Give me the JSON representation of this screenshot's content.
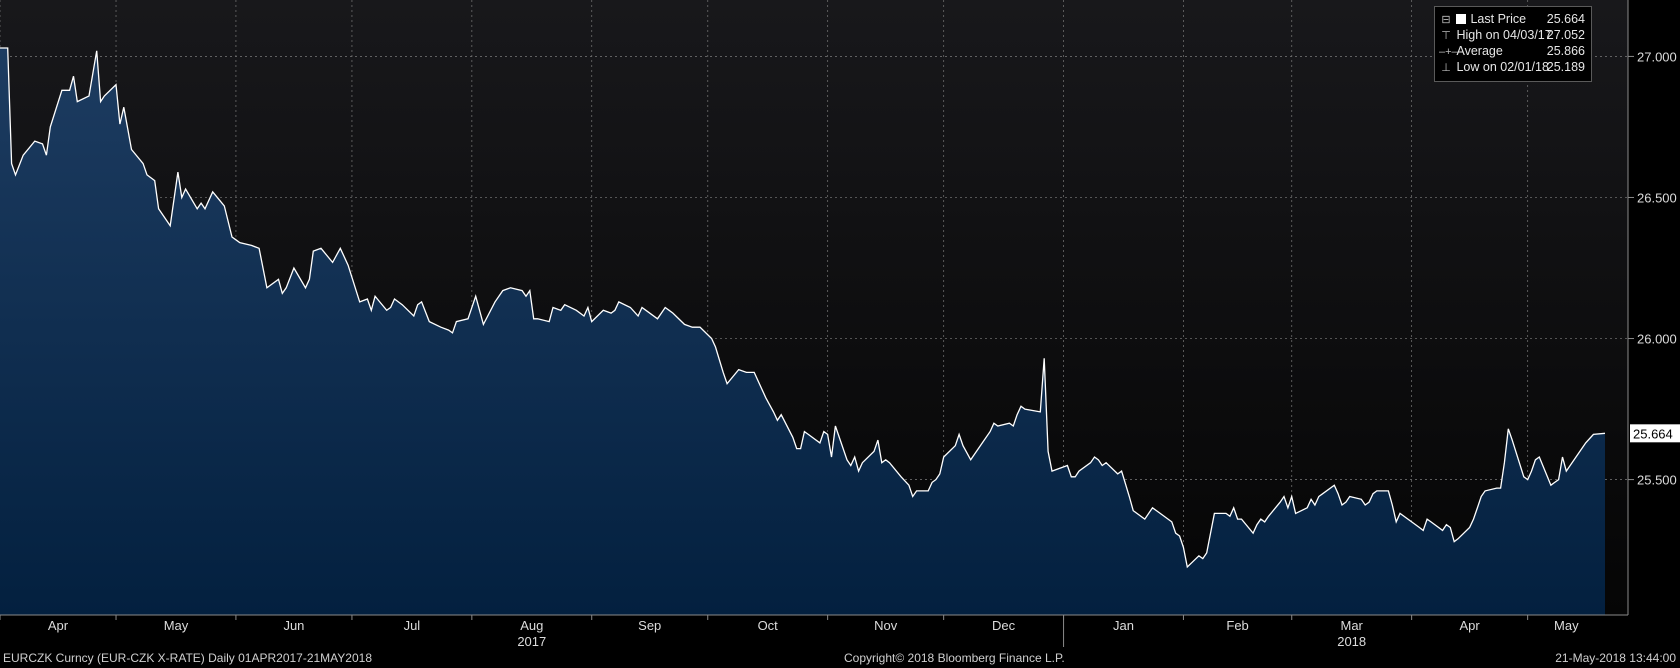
{
  "chart_data": {
    "type": "area",
    "ylim": [
      25.02,
      27.2
    ],
    "yticks": [
      25.5,
      26.0,
      26.5,
      27.0
    ],
    "ytick_labels": [
      "25.500",
      "26.000",
      "26.500",
      "27.000"
    ],
    "x_start": "2017-04-01",
    "x_end": "2018-05-21",
    "month_ticks": [
      "2017-04-01",
      "2017-05-01",
      "2017-06-01",
      "2017-07-01",
      "2017-08-01",
      "2017-09-01",
      "2017-10-01",
      "2017-11-01",
      "2017-12-01",
      "2018-01-01",
      "2018-02-01",
      "2018-03-01",
      "2018-04-01",
      "2018-05-01"
    ],
    "month_labels": [
      "Apr",
      "May",
      "Jun",
      "Jul",
      "Aug",
      "Sep",
      "Oct",
      "Nov",
      "Dec",
      "Jan",
      "Feb",
      "Mar",
      "Apr",
      "May"
    ],
    "year_labels": [
      {
        "text": "2017",
        "month_index": 4
      },
      {
        "text": "2018",
        "month_index": 11
      }
    ],
    "series": [
      {
        "values": [
          [
            "2017-04-01",
            27.03
          ],
          [
            "2017-04-03",
            27.03
          ],
          [
            "2017-04-04",
            26.62
          ],
          [
            "2017-04-05",
            26.58
          ],
          [
            "2017-04-07",
            26.65
          ],
          [
            "2017-04-10",
            26.7
          ],
          [
            "2017-04-12",
            26.69
          ],
          [
            "2017-04-13",
            26.65
          ],
          [
            "2017-04-14",
            26.75
          ],
          [
            "2017-04-17",
            26.88
          ],
          [
            "2017-04-19",
            26.88
          ],
          [
            "2017-04-20",
            26.93
          ],
          [
            "2017-04-21",
            26.84
          ],
          [
            "2017-04-24",
            26.86
          ],
          [
            "2017-04-26",
            27.02
          ],
          [
            "2017-04-27",
            26.84
          ],
          [
            "2017-04-28",
            26.86
          ],
          [
            "2017-05-01",
            26.9
          ],
          [
            "2017-05-02",
            26.76
          ],
          [
            "2017-05-03",
            26.82
          ],
          [
            "2017-05-05",
            26.67
          ],
          [
            "2017-05-08",
            26.62
          ],
          [
            "2017-05-09",
            26.58
          ],
          [
            "2017-05-11",
            26.56
          ],
          [
            "2017-05-12",
            26.46
          ],
          [
            "2017-05-15",
            26.4
          ],
          [
            "2017-05-17",
            26.59
          ],
          [
            "2017-05-18",
            26.5
          ],
          [
            "2017-05-19",
            26.53
          ],
          [
            "2017-05-22",
            26.46
          ],
          [
            "2017-05-23",
            26.48
          ],
          [
            "2017-05-24",
            26.46
          ],
          [
            "2017-05-26",
            26.52
          ],
          [
            "2017-05-29",
            26.47
          ],
          [
            "2017-05-31",
            26.36
          ],
          [
            "2017-06-01",
            26.35
          ],
          [
            "2017-06-02",
            26.34
          ],
          [
            "2017-06-05",
            26.33
          ],
          [
            "2017-06-07",
            26.32
          ],
          [
            "2017-06-09",
            26.18
          ],
          [
            "2017-06-12",
            26.21
          ],
          [
            "2017-06-13",
            26.16
          ],
          [
            "2017-06-14",
            26.18
          ],
          [
            "2017-06-16",
            26.25
          ],
          [
            "2017-06-19",
            26.18
          ],
          [
            "2017-06-20",
            26.21
          ],
          [
            "2017-06-21",
            26.31
          ],
          [
            "2017-06-23",
            26.32
          ],
          [
            "2017-06-26",
            26.27
          ],
          [
            "2017-06-28",
            26.32
          ],
          [
            "2017-06-30",
            26.26
          ],
          [
            "2017-07-03",
            26.13
          ],
          [
            "2017-07-05",
            26.14
          ],
          [
            "2017-07-06",
            26.1
          ],
          [
            "2017-07-07",
            26.15
          ],
          [
            "2017-07-10",
            26.1
          ],
          [
            "2017-07-11",
            26.11
          ],
          [
            "2017-07-12",
            26.14
          ],
          [
            "2017-07-14",
            26.12
          ],
          [
            "2017-07-17",
            26.08
          ],
          [
            "2017-07-18",
            26.12
          ],
          [
            "2017-07-19",
            26.13
          ],
          [
            "2017-07-21",
            26.06
          ],
          [
            "2017-07-24",
            26.04
          ],
          [
            "2017-07-26",
            26.03
          ],
          [
            "2017-07-27",
            26.02
          ],
          [
            "2017-07-28",
            26.06
          ],
          [
            "2017-07-31",
            26.07
          ],
          [
            "2017-08-02",
            26.15
          ],
          [
            "2017-08-04",
            26.05
          ],
          [
            "2017-08-07",
            26.13
          ],
          [
            "2017-08-09",
            26.17
          ],
          [
            "2017-08-11",
            26.18
          ],
          [
            "2017-08-14",
            26.17
          ],
          [
            "2017-08-15",
            26.15
          ],
          [
            "2017-08-16",
            26.17
          ],
          [
            "2017-08-17",
            26.07
          ],
          [
            "2017-08-18",
            26.07
          ],
          [
            "2017-08-21",
            26.06
          ],
          [
            "2017-08-22",
            26.11
          ],
          [
            "2017-08-24",
            26.1
          ],
          [
            "2017-08-25",
            26.12
          ],
          [
            "2017-08-28",
            26.1
          ],
          [
            "2017-08-30",
            26.08
          ],
          [
            "2017-08-31",
            26.11
          ],
          [
            "2017-09-01",
            26.06
          ],
          [
            "2017-09-04",
            26.1
          ],
          [
            "2017-09-06",
            26.09
          ],
          [
            "2017-09-07",
            26.1
          ],
          [
            "2017-09-08",
            26.13
          ],
          [
            "2017-09-11",
            26.11
          ],
          [
            "2017-09-13",
            26.08
          ],
          [
            "2017-09-14",
            26.11
          ],
          [
            "2017-09-15",
            26.1
          ],
          [
            "2017-09-18",
            26.07
          ],
          [
            "2017-09-20",
            26.11
          ],
          [
            "2017-09-21",
            26.1
          ],
          [
            "2017-09-22",
            26.09
          ],
          [
            "2017-09-25",
            26.05
          ],
          [
            "2017-09-27",
            26.04
          ],
          [
            "2017-09-29",
            26.04
          ],
          [
            "2017-10-02",
            26.0
          ],
          [
            "2017-10-03",
            25.97
          ],
          [
            "2017-10-05",
            25.88
          ],
          [
            "2017-10-06",
            25.84
          ],
          [
            "2017-10-09",
            25.89
          ],
          [
            "2017-10-11",
            25.88
          ],
          [
            "2017-10-13",
            25.88
          ],
          [
            "2017-10-16",
            25.79
          ],
          [
            "2017-10-18",
            25.74
          ],
          [
            "2017-10-19",
            25.71
          ],
          [
            "2017-10-20",
            25.73
          ],
          [
            "2017-10-23",
            25.65
          ],
          [
            "2017-10-24",
            25.61
          ],
          [
            "2017-10-25",
            25.61
          ],
          [
            "2017-10-26",
            25.67
          ],
          [
            "2017-10-27",
            25.66
          ],
          [
            "2017-10-30",
            25.63
          ],
          [
            "2017-10-31",
            25.67
          ],
          [
            "2017-11-01",
            25.66
          ],
          [
            "2017-11-02",
            25.58
          ],
          [
            "2017-11-03",
            25.69
          ],
          [
            "2017-11-06",
            25.57
          ],
          [
            "2017-11-07",
            25.55
          ],
          [
            "2017-11-08",
            25.58
          ],
          [
            "2017-11-09",
            25.53
          ],
          [
            "2017-11-10",
            25.56
          ],
          [
            "2017-11-13",
            25.6
          ],
          [
            "2017-11-14",
            25.64
          ],
          [
            "2017-11-15",
            25.56
          ],
          [
            "2017-11-16",
            25.57
          ],
          [
            "2017-11-17",
            25.56
          ],
          [
            "2017-11-20",
            25.51
          ],
          [
            "2017-11-22",
            25.48
          ],
          [
            "2017-11-23",
            25.44
          ],
          [
            "2017-11-24",
            25.46
          ],
          [
            "2017-11-27",
            25.46
          ],
          [
            "2017-11-28",
            25.49
          ],
          [
            "2017-11-29",
            25.5
          ],
          [
            "2017-11-30",
            25.52
          ],
          [
            "2017-12-01",
            25.58
          ],
          [
            "2017-12-04",
            25.62
          ],
          [
            "2017-12-05",
            25.66
          ],
          [
            "2017-12-06",
            25.62
          ],
          [
            "2017-12-08",
            25.57
          ],
          [
            "2017-12-11",
            25.63
          ],
          [
            "2017-12-13",
            25.67
          ],
          [
            "2017-12-14",
            25.7
          ],
          [
            "2017-12-15",
            25.69
          ],
          [
            "2017-12-18",
            25.7
          ],
          [
            "2017-12-19",
            25.69
          ],
          [
            "2017-12-20",
            25.73
          ],
          [
            "2017-12-21",
            25.76
          ],
          [
            "2017-12-22",
            25.75
          ],
          [
            "2017-12-26",
            25.74
          ],
          [
            "2017-12-27",
            25.93
          ],
          [
            "2017-12-28",
            25.6
          ],
          [
            "2017-12-29",
            25.53
          ],
          [
            "2018-01-02",
            25.55
          ],
          [
            "2018-01-03",
            25.51
          ],
          [
            "2018-01-04",
            25.51
          ],
          [
            "2018-01-05",
            25.53
          ],
          [
            "2018-01-08",
            25.56
          ],
          [
            "2018-01-09",
            25.58
          ],
          [
            "2018-01-10",
            25.57
          ],
          [
            "2018-01-11",
            25.55
          ],
          [
            "2018-01-12",
            25.56
          ],
          [
            "2018-01-15",
            25.52
          ],
          [
            "2018-01-16",
            25.53
          ],
          [
            "2018-01-18",
            25.44
          ],
          [
            "2018-01-19",
            25.39
          ],
          [
            "2018-01-22",
            25.36
          ],
          [
            "2018-01-24",
            25.4
          ],
          [
            "2018-01-25",
            25.39
          ],
          [
            "2018-01-26",
            25.38
          ],
          [
            "2018-01-29",
            25.35
          ],
          [
            "2018-01-30",
            25.31
          ],
          [
            "2018-01-31",
            25.3
          ],
          [
            "2018-02-01",
            25.26
          ],
          [
            "2018-02-02",
            25.19
          ],
          [
            "2018-02-05",
            25.23
          ],
          [
            "2018-02-06",
            25.22
          ],
          [
            "2018-02-07",
            25.24
          ],
          [
            "2018-02-09",
            25.38
          ],
          [
            "2018-02-12",
            25.38
          ],
          [
            "2018-02-13",
            25.37
          ],
          [
            "2018-02-14",
            25.4
          ],
          [
            "2018-02-15",
            25.36
          ],
          [
            "2018-02-16",
            25.36
          ],
          [
            "2018-02-19",
            25.31
          ],
          [
            "2018-02-20",
            25.34
          ],
          [
            "2018-02-21",
            25.36
          ],
          [
            "2018-02-22",
            25.35
          ],
          [
            "2018-02-23",
            25.37
          ],
          [
            "2018-02-26",
            25.42
          ],
          [
            "2018-02-27",
            25.44
          ],
          [
            "2018-02-28",
            25.4
          ],
          [
            "2018-03-01",
            25.44
          ],
          [
            "2018-03-02",
            25.38
          ],
          [
            "2018-03-05",
            25.4
          ],
          [
            "2018-03-06",
            25.43
          ],
          [
            "2018-03-07",
            25.41
          ],
          [
            "2018-03-08",
            25.44
          ],
          [
            "2018-03-09",
            25.45
          ],
          [
            "2018-03-12",
            25.48
          ],
          [
            "2018-03-13",
            25.45
          ],
          [
            "2018-03-14",
            25.41
          ],
          [
            "2018-03-15",
            25.42
          ],
          [
            "2018-03-16",
            25.44
          ],
          [
            "2018-03-19",
            25.43
          ],
          [
            "2018-03-20",
            25.41
          ],
          [
            "2018-03-21",
            25.42
          ],
          [
            "2018-03-22",
            25.45
          ],
          [
            "2018-03-23",
            25.46
          ],
          [
            "2018-03-26",
            25.46
          ],
          [
            "2018-03-27",
            25.41
          ],
          [
            "2018-03-28",
            25.35
          ],
          [
            "2018-03-29",
            25.38
          ],
          [
            "2018-04-03",
            25.33
          ],
          [
            "2018-04-04",
            25.32
          ],
          [
            "2018-04-05",
            25.36
          ],
          [
            "2018-04-06",
            25.35
          ],
          [
            "2018-04-09",
            25.32
          ],
          [
            "2018-04-10",
            25.34
          ],
          [
            "2018-04-11",
            25.33
          ],
          [
            "2018-04-12",
            25.28
          ],
          [
            "2018-04-13",
            25.29
          ],
          [
            "2018-04-16",
            25.33
          ],
          [
            "2018-04-17",
            25.36
          ],
          [
            "2018-04-18",
            25.4
          ],
          [
            "2018-04-19",
            25.44
          ],
          [
            "2018-04-20",
            25.46
          ],
          [
            "2018-04-23",
            25.47
          ],
          [
            "2018-04-24",
            25.47
          ],
          [
            "2018-04-25",
            25.56
          ],
          [
            "2018-04-26",
            25.68
          ],
          [
            "2018-04-27",
            25.64
          ],
          [
            "2018-04-30",
            25.51
          ],
          [
            "2018-05-01",
            25.5
          ],
          [
            "2018-05-02",
            25.53
          ],
          [
            "2018-05-03",
            25.57
          ],
          [
            "2018-05-04",
            25.58
          ],
          [
            "2018-05-07",
            25.48
          ],
          [
            "2018-05-08",
            25.49
          ],
          [
            "2018-05-09",
            25.5
          ],
          [
            "2018-05-10",
            25.58
          ],
          [
            "2018-05-11",
            25.53
          ],
          [
            "2018-05-14",
            25.59
          ],
          [
            "2018-05-16",
            25.63
          ],
          [
            "2018-05-18",
            25.66
          ],
          [
            "2018-05-21",
            25.664
          ]
        ]
      }
    ],
    "last_value_label": "25.664"
  },
  "legend": {
    "items": [
      {
        "glyph": "⊟",
        "label": "Last Price",
        "value": "25.664"
      },
      {
        "glyph": "⊤",
        "label": "High on 04/03/17",
        "value": "27.052"
      },
      {
        "glyph": "–+–",
        "label": "Average",
        "value": "25.866"
      },
      {
        "glyph": "⊥",
        "label": "Low on 02/01/18",
        "value": "25.189"
      }
    ]
  },
  "footer": {
    "left": "EURCZK Curncy (EUR-CZK X-RATE)  Daily 01APR2017-21MAY2018",
    "center": "Copyright© 2018 Bloomberg Finance L.P.",
    "right": "21-May-2018 13:44:00"
  },
  "colors": {
    "background_top": "#141416",
    "background_bottom": "#050505",
    "area_top": "#1c3a5e",
    "area_bottom": "#04203f",
    "line": "#ffffff",
    "grid": "#6c6c6c"
  }
}
